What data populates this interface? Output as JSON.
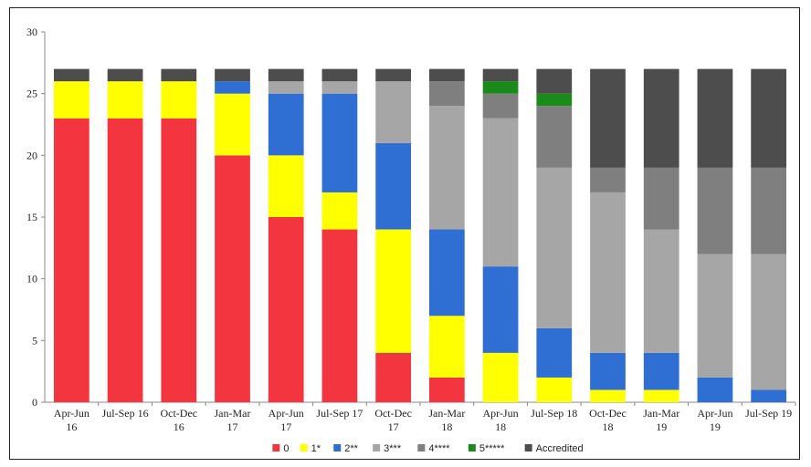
{
  "chart_data": {
    "type": "bar",
    "stacked": true,
    "categories": [
      [
        "Apr-Jun",
        "16"
      ],
      [
        "Jul-Sep 16"
      ],
      [
        "Oct-Dec",
        "16"
      ],
      [
        "Jan-Mar",
        "17"
      ],
      [
        "Apr-Jun",
        "17"
      ],
      [
        "Jul-Sep 17"
      ],
      [
        "Oct-Dec",
        "17"
      ],
      [
        "Jan-Mar",
        "18"
      ],
      [
        "Apr-Jun",
        "18"
      ],
      [
        "Jul-Sep 18"
      ],
      [
        "Oct-Dec",
        "18"
      ],
      [
        "Jan-Mar",
        "19"
      ],
      [
        "Apr-Jun",
        "19"
      ],
      [
        "Jul-Sep 19"
      ]
    ],
    "series": [
      {
        "name": "0",
        "color": "#f2353f",
        "values": [
          23,
          23,
          23,
          20,
          15,
          14,
          4,
          2,
          0,
          0,
          0,
          0,
          0,
          0
        ]
      },
      {
        "name": "1*",
        "color": "#ffff00",
        "values": [
          3,
          3,
          3,
          5,
          5,
          3,
          10,
          5,
          4,
          2,
          1,
          1,
          0,
          0
        ]
      },
      {
        "name": "2**",
        "color": "#2f6fd3",
        "values": [
          0,
          0,
          0,
          1,
          5,
          8,
          7,
          7,
          7,
          4,
          3,
          3,
          2,
          1
        ]
      },
      {
        "name": "3***",
        "color": "#a6a6a6",
        "values": [
          0,
          0,
          0,
          0,
          1,
          1,
          5,
          10,
          12,
          13,
          13,
          10,
          10,
          11
        ]
      },
      {
        "name": "4****",
        "color": "#7f7f7f",
        "values": [
          0,
          0,
          0,
          0,
          0,
          0,
          0,
          2,
          2,
          5,
          2,
          5,
          7,
          7
        ]
      },
      {
        "name": "5*****",
        "color": "#1a8a1a",
        "values": [
          0,
          0,
          0,
          0,
          0,
          0,
          0,
          0,
          1,
          1,
          0,
          0,
          0,
          0
        ]
      },
      {
        "name": "Accredited",
        "color": "#4d4d4d",
        "values": [
          1,
          1,
          1,
          1,
          1,
          1,
          1,
          1,
          1,
          2,
          8,
          8,
          8,
          8
        ]
      }
    ],
    "ylim": [
      0,
      30
    ],
    "yticks": [
      0,
      5,
      10,
      15,
      20,
      25,
      30
    ],
    "grid": false,
    "legend_position": "bottom",
    "title": "",
    "xlabel": "",
    "ylabel": ""
  }
}
